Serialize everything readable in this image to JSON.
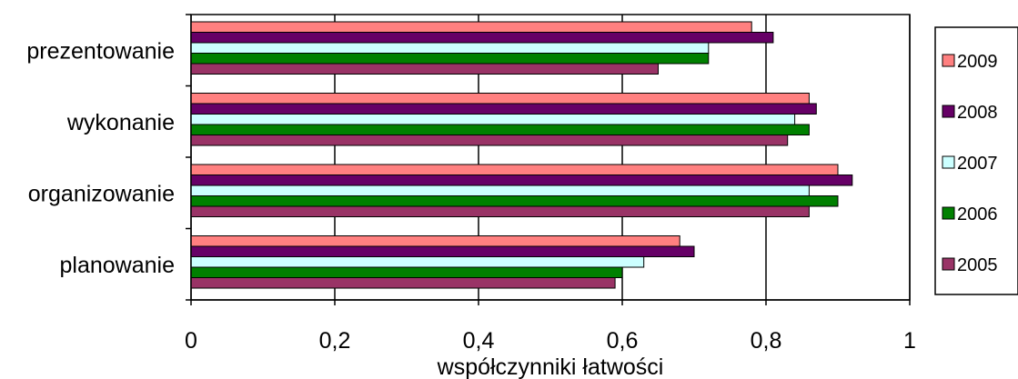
{
  "chart_data": {
    "type": "bar",
    "orientation": "horizontal",
    "categories": [
      "prezentowanie",
      "wykonanie",
      "organizowanie",
      "planowanie"
    ],
    "series": [
      {
        "name": "2009",
        "color": "#ff8080",
        "values": [
          0.78,
          0.86,
          0.9,
          0.68
        ]
      },
      {
        "name": "2008",
        "color": "#660066",
        "values": [
          0.81,
          0.87,
          0.92,
          0.7
        ]
      },
      {
        "name": "2007",
        "color": "#ccffff",
        "values": [
          0.72,
          0.84,
          0.86,
          0.63
        ]
      },
      {
        "name": "2006",
        "color": "#008000",
        "values": [
          0.72,
          0.86,
          0.9,
          0.6
        ]
      },
      {
        "name": "2005",
        "color": "#993366",
        "values": [
          0.65,
          0.83,
          0.86,
          0.59
        ]
      }
    ],
    "xlim": [
      0,
      1
    ],
    "xticks": [
      0,
      0.2,
      0.4,
      0.6,
      0.8,
      1
    ],
    "xtick_labels": [
      "0",
      "0,2",
      "0,4",
      "0,6",
      "0,8",
      "1"
    ],
    "xlabel": "współczynniki łatwości",
    "ylabel": "",
    "title": "",
    "grid": "vertical",
    "legend_position": "right"
  }
}
